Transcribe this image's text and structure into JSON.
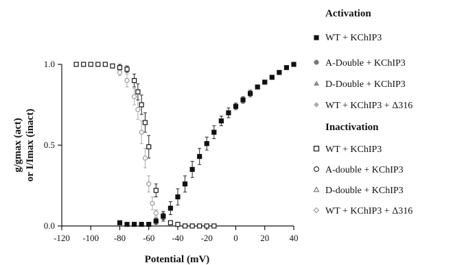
{
  "chart_data": {
    "type": "scatter",
    "xlabel": "Potential (mV)",
    "ylabel_line1": "g/gmax (act)",
    "ylabel_line2": "or I/Imax (inact)",
    "xlim": [
      -120,
      40
    ],
    "ylim": [
      0,
      1
    ],
    "xticks": [
      -120,
      -100,
      -80,
      -60,
      -40,
      -20,
      0,
      20,
      40
    ],
    "yticks": [
      0.0,
      0.5,
      1.0
    ],
    "ytick_labels": [
      "0.0",
      "0.5",
      "1.0"
    ],
    "grid": false,
    "legend_position": "right",
    "legend_groups": [
      {
        "heading": "Activation",
        "series": [
          {
            "name": "WT + KChIP3",
            "marker": "square-filled",
            "color": "#111111"
          },
          {
            "name": "A-Double + KChIP3",
            "marker": "circle-filled",
            "color": "#777777"
          },
          {
            "name": "D-Double + KChIP3",
            "marker": "triangle-filled",
            "color": "#888888"
          },
          {
            "name": "WT + KChIP3 + Δ316",
            "marker": "diamond-filled",
            "color": "#aaaaaa"
          }
        ]
      },
      {
        "heading": "Inactivation",
        "series": [
          {
            "name": "WT + KChIP3",
            "marker": "square-open",
            "color": "#111111"
          },
          {
            "name": "A-double + KChIP3",
            "marker": "circle-open",
            "color": "#333333"
          },
          {
            "name": "D-double + KChIP3",
            "marker": "triangle-open",
            "color": "#777777"
          },
          {
            "name": "WT + KChIP3 + Δ316",
            "marker": "diamond-open",
            "color": "#999999"
          }
        ]
      }
    ],
    "activation": {
      "x": [
        -80,
        -75,
        -70,
        -65,
        -60,
        -55,
        -50,
        -45,
        -40,
        -35,
        -30,
        -25,
        -20,
        -15,
        -10,
        -5,
        0,
        5,
        10,
        15,
        20,
        25,
        30,
        35,
        40
      ],
      "y": [
        0.02,
        0.01,
        0.01,
        0.01,
        0.01,
        0.03,
        0.06,
        0.11,
        0.18,
        0.26,
        0.35,
        0.43,
        0.51,
        0.58,
        0.65,
        0.7,
        0.74,
        0.78,
        0.82,
        0.86,
        0.89,
        0.92,
        0.95,
        0.98,
        1.0
      ],
      "err": [
        0,
        0,
        0,
        0,
        0,
        0.02,
        0.03,
        0.04,
        0.05,
        0.05,
        0.05,
        0.05,
        0.04,
        0.04,
        0.03,
        0.03,
        0.02,
        0.02,
        0.02,
        0.01,
        0.01,
        0.01,
        0.01,
        0.01,
        0
      ]
    },
    "inactivation": {
      "x": [
        -110,
        -105,
        -100,
        -95,
        -90,
        -85,
        -80,
        -75,
        -70,
        -67.5,
        -65,
        -62.5,
        -60,
        -55,
        -50,
        -45,
        -40,
        -35,
        -30,
        -25,
        -20,
        -15
      ],
      "y": [
        1.0,
        1.0,
        1.0,
        1.0,
        1.0,
        0.99,
        0.98,
        0.97,
        0.9,
        0.83,
        0.75,
        0.64,
        0.49,
        0.22,
        0.06,
        0.02,
        0.01,
        0.0,
        0.0,
        0.0,
        0.0,
        0.0
      ],
      "err": [
        0,
        0,
        0,
        0,
        0,
        0.01,
        0.02,
        0.02,
        0.04,
        0.05,
        0.06,
        0.06,
        0.07,
        0.04,
        0.02,
        0.01,
        0,
        0,
        0,
        0,
        0,
        0
      ]
    },
    "inactivation_grey": {
      "x": [
        -80,
        -75,
        -70,
        -67.5,
        -65,
        -62.5,
        -60,
        -57.5,
        -55
      ],
      "y": [
        0.95,
        0.9,
        0.8,
        0.72,
        0.58,
        0.42,
        0.26,
        0.14,
        0.08
      ],
      "err": [
        0.02,
        0.04,
        0.05,
        0.06,
        0.07,
        0.06,
        0.05,
        0.04,
        0.02
      ]
    }
  }
}
